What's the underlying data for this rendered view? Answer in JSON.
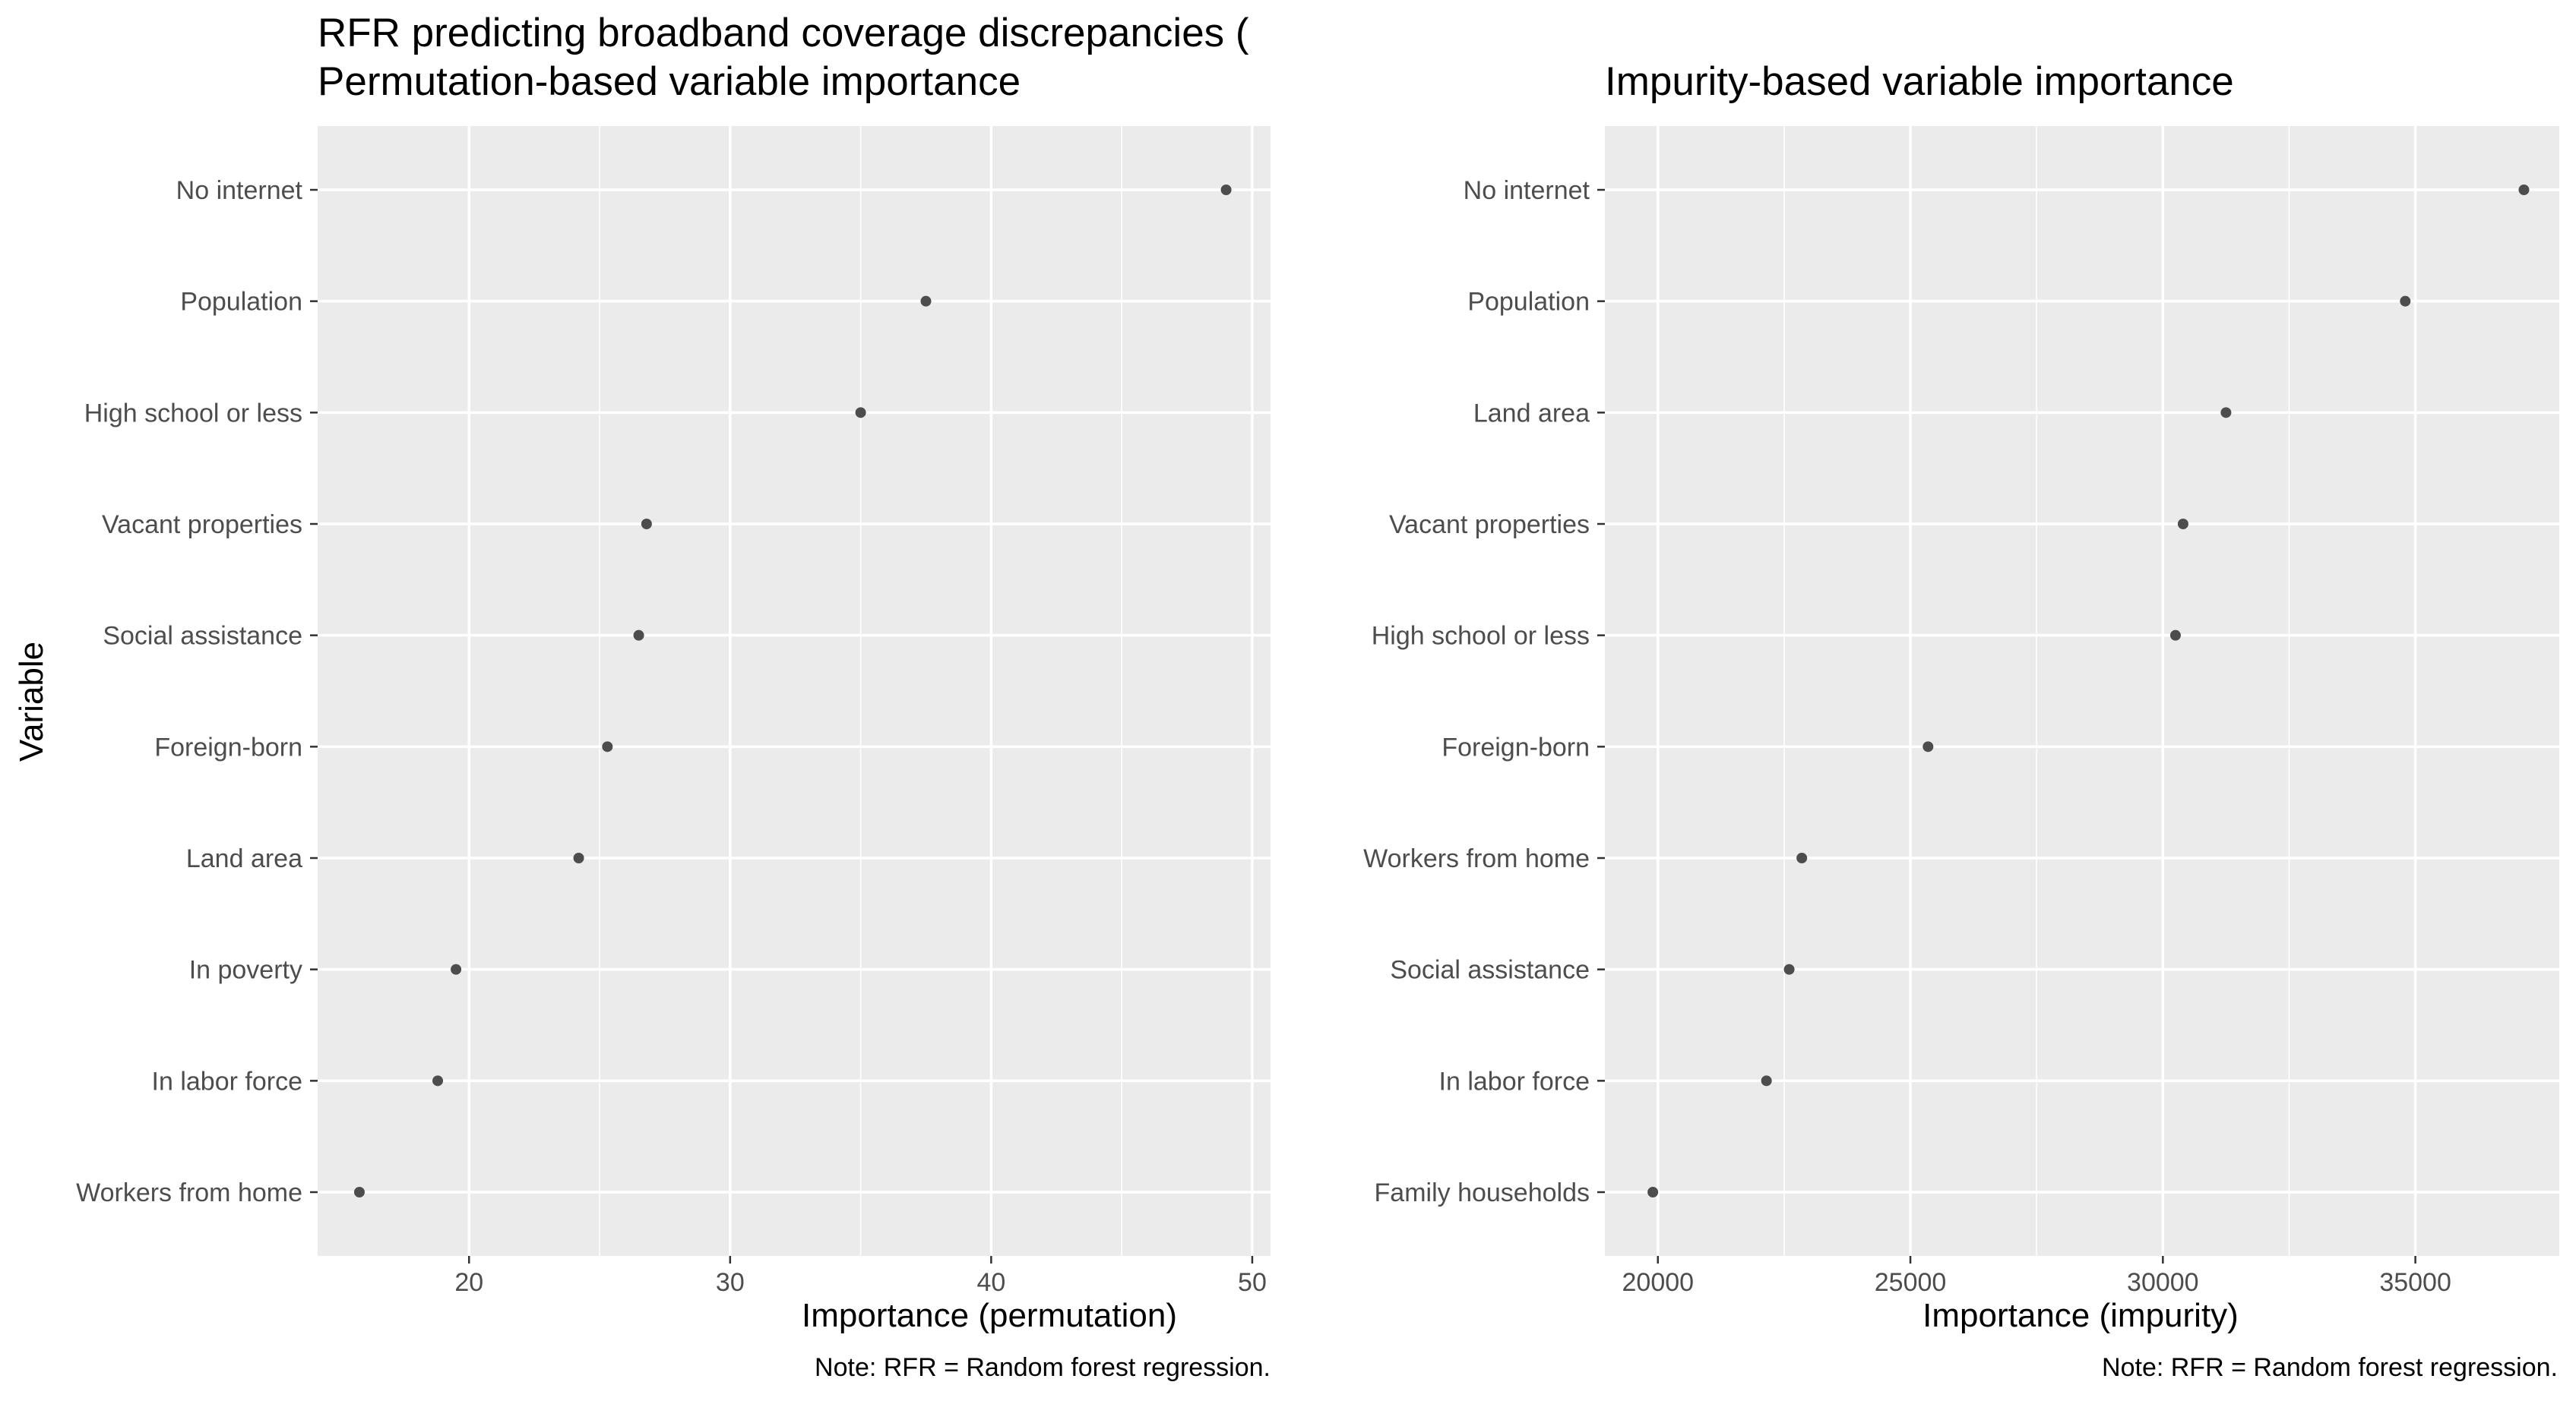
{
  "chart_data": [
    {
      "type": "scatter",
      "title": "RFR predicting broadband coverage discrepancies (\nPermutation-based variable importance",
      "xlabel": "Importance (permutation)",
      "ylabel": "Variable",
      "caption": "Note: RFR = Random forest regression.",
      "xlim": [
        14.2,
        50.7
      ],
      "xticks": [
        20,
        30,
        40,
        50
      ],
      "grid": true,
      "categories": [
        "No internet",
        "Population",
        "High school or less",
        "Vacant properties",
        "Social assistance",
        "Foreign-born",
        "Land area",
        "In poverty",
        "In labor force",
        "Workers from home"
      ],
      "values": [
        49.0,
        37.5,
        35.0,
        26.8,
        26.5,
        25.3,
        24.2,
        19.5,
        18.8,
        15.8
      ]
    },
    {
      "type": "scatter",
      "title": "Impurity-based variable importance",
      "xlabel": "Importance (impurity)",
      "caption": "Note: RFR = Random forest regression.",
      "xlim": [
        18950,
        37850
      ],
      "xticks": [
        20000,
        25000,
        30000,
        35000
      ],
      "grid": true,
      "categories": [
        "No internet",
        "Population",
        "Land area",
        "Vacant properties",
        "High school or less",
        "Foreign-born",
        "Workers from home",
        "Social assistance",
        "In labor force",
        "Family households"
      ],
      "values": [
        37150,
        34800,
        31250,
        30400,
        30250,
        25350,
        22850,
        22600,
        22150,
        19900
      ]
    }
  ],
  "style": {
    "panel_bg": "#EBEBEB",
    "grid_color": "#FFFFFF",
    "point_color": "#4D4D4D",
    "tick_label_color": "#4D4D4D",
    "tick_color": "#333333"
  }
}
